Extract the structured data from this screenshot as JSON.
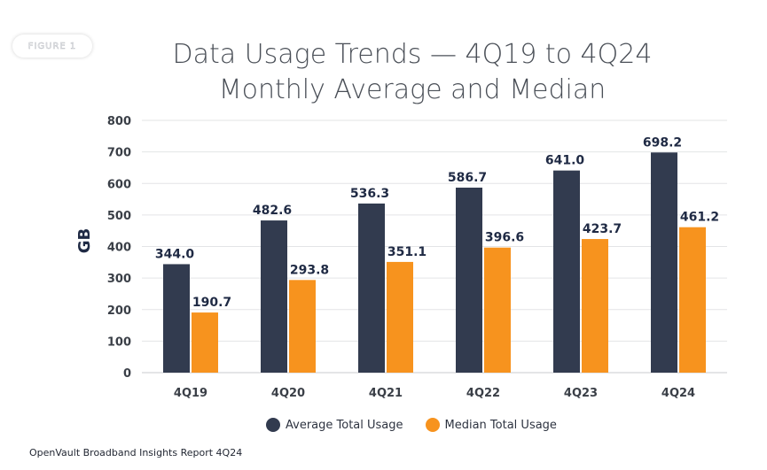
{
  "figure_badge": "FIGURE 1",
  "chart_data": {
    "type": "bar",
    "title_lines": [
      "Data Usage Trends — 4Q19 to 4Q24",
      "Monthly Average and Median"
    ],
    "ylabel": "GB",
    "xlabel": "",
    "ylim": [
      0,
      800
    ],
    "yticks": [
      0,
      100,
      200,
      300,
      400,
      500,
      600,
      700,
      800
    ],
    "grid": true,
    "legend_position": "bottom",
    "categories": [
      "4Q19",
      "4Q20",
      "4Q21",
      "4Q22",
      "4Q23",
      "4Q24"
    ],
    "series": [
      {
        "name": "Average Total Usage",
        "color": "#323b4f",
        "values": [
          344.0,
          482.6,
          536.3,
          586.7,
          641.0,
          698.2
        ],
        "labels": [
          "344.0",
          "482.6",
          "536.3",
          "586.7",
          "641.0",
          "698.2"
        ]
      },
      {
        "name": "Median Total Usage",
        "color": "#f7931e",
        "values": [
          190.7,
          293.8,
          351.1,
          396.6,
          423.7,
          461.2
        ],
        "labels": [
          "190.7",
          "293.8",
          "351.1",
          "396.6",
          "423.7",
          "461.2"
        ]
      }
    ]
  },
  "source": "OpenVault Broadband Insights Report 4Q24"
}
